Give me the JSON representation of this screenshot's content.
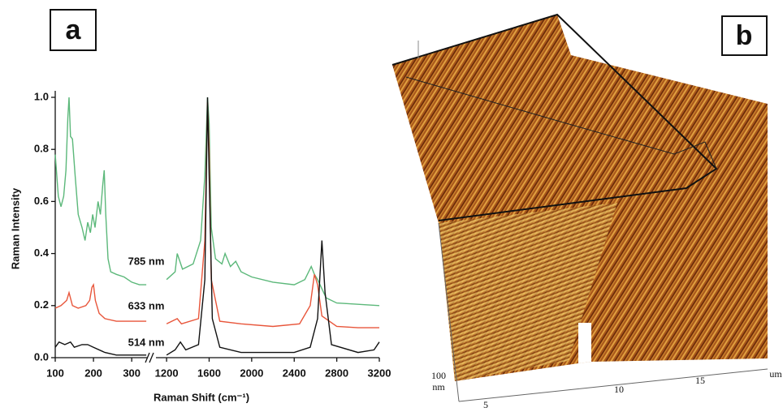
{
  "chart_data": {
    "type": "line",
    "x_label": "Raman Shift (cm⁻¹)",
    "y_label": "Raman Intensity",
    "ylim": [
      0,
      1
    ],
    "yticks": [
      {
        "value": 0,
        "label": "0.0"
      },
      0.2,
      0.4,
      0.6,
      0.8,
      {
        "value": 1,
        "label": "1.0"
      }
    ],
    "x_segments": [
      {
        "xlim": [
          100,
          340
        ],
        "xticks": [
          100,
          200,
          300
        ]
      },
      {
        "xlim": [
          1100,
          3200
        ],
        "xticks": [
          1200,
          1600,
          2000,
          2400,
          2800,
          3200
        ]
      }
    ],
    "series": [
      {
        "name": "785 nm",
        "color": "#5cb87a",
        "x": [
          100,
          108,
          115,
          122,
          128,
          133,
          136,
          140,
          145,
          152,
          160,
          170,
          178,
          185,
          192,
          198,
          204,
          212,
          218,
          224,
          228,
          232,
          238,
          245,
          260,
          280,
          300,
          320,
          338,
          1200,
          1280,
          1300,
          1350,
          1450,
          1520,
          1560,
          1585,
          1600,
          1620,
          1660,
          1720,
          1750,
          1800,
          1850,
          1900,
          2000,
          2200,
          2400,
          2500,
          2560,
          2590,
          2620,
          2700,
          2800,
          3000,
          3200
        ],
        "values": [
          0.78,
          0.62,
          0.58,
          0.62,
          0.72,
          0.92,
          1.0,
          0.85,
          0.84,
          0.7,
          0.55,
          0.5,
          0.45,
          0.52,
          0.48,
          0.55,
          0.5,
          0.6,
          0.55,
          0.66,
          0.72,
          0.55,
          0.38,
          0.33,
          0.32,
          0.31,
          0.29,
          0.28,
          0.28,
          0.3,
          0.33,
          0.4,
          0.34,
          0.36,
          0.45,
          0.7,
          1.0,
          0.9,
          0.5,
          0.38,
          0.36,
          0.4,
          0.35,
          0.37,
          0.33,
          0.31,
          0.29,
          0.28,
          0.3,
          0.35,
          0.32,
          0.3,
          0.23,
          0.21,
          0.205,
          0.2
        ]
      },
      {
        "name": "633 nm",
        "color": "#e8553a",
        "x": [
          100,
          115,
          130,
          136,
          145,
          160,
          180,
          190,
          196,
          200,
          205,
          215,
          230,
          260,
          300,
          338,
          1200,
          1300,
          1340,
          1500,
          1560,
          1585,
          1600,
          1620,
          1700,
          1900,
          2200,
          2450,
          2550,
          2590,
          2620,
          2660,
          2800,
          3000,
          3200
        ],
        "values": [
          0.19,
          0.2,
          0.22,
          0.25,
          0.2,
          0.19,
          0.2,
          0.22,
          0.27,
          0.28,
          0.22,
          0.17,
          0.15,
          0.14,
          0.14,
          0.14,
          0.13,
          0.15,
          0.13,
          0.15,
          0.45,
          0.98,
          0.8,
          0.3,
          0.14,
          0.13,
          0.12,
          0.13,
          0.2,
          0.32,
          0.28,
          0.16,
          0.12,
          0.115,
          0.115
        ]
      },
      {
        "name": "514 nm",
        "color": "#111111",
        "x": [
          100,
          110,
          125,
          140,
          150,
          170,
          185,
          200,
          230,
          260,
          300,
          338,
          1200,
          1280,
          1330,
          1380,
          1500,
          1560,
          1585,
          1600,
          1630,
          1700,
          1900,
          2400,
          2550,
          2620,
          2660,
          2690,
          2750,
          3000,
          3150,
          3200
        ],
        "values": [
          0.04,
          0.06,
          0.05,
          0.06,
          0.04,
          0.05,
          0.05,
          0.04,
          0.02,
          0.01,
          0.01,
          0.01,
          0.01,
          0.03,
          0.06,
          0.03,
          0.05,
          0.3,
          1.0,
          0.7,
          0.15,
          0.04,
          0.02,
          0.02,
          0.04,
          0.15,
          0.45,
          0.25,
          0.05,
          0.02,
          0.03,
          0.06
        ]
      }
    ]
  },
  "panel_labels": [
    "a",
    "b"
  ],
  "afm_image": {
    "ticks": [
      5,
      10,
      15
    ],
    "unit": "um",
    "z_tick": 100,
    "z_unit": "nm"
  }
}
